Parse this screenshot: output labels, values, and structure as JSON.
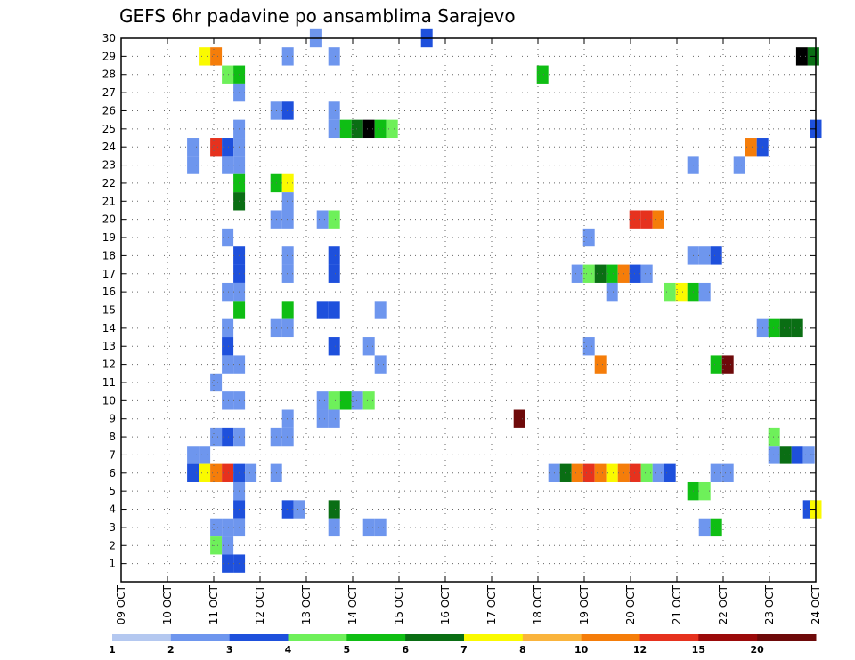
{
  "chart_data": {
    "type": "heatmap",
    "title": "GEFS 6hr padavine po ansamblima Sarajevo",
    "x_ticks": [
      "09 OCT",
      "10 OCT",
      "11 OCT",
      "12 OCT",
      "13 OCT",
      "14 OCT",
      "15 OCT",
      "16 OCT",
      "17 OCT",
      "18 OCT",
      "19 OCT",
      "20 OCT",
      "21 OCT",
      "22 OCT",
      "23 OCT",
      "24 OCT"
    ],
    "x_range": [
      9,
      24
    ],
    "y_range": [
      0,
      30
    ],
    "y_ticks": [
      1,
      2,
      3,
      4,
      5,
      6,
      7,
      8,
      9,
      10,
      11,
      12,
      13,
      14,
      15,
      16,
      17,
      18,
      19,
      20,
      21,
      22,
      23,
      24,
      25,
      26,
      27,
      28,
      29,
      30
    ],
    "grid": true,
    "colorbar": {
      "labels": [
        "1",
        "2",
        "3",
        "4",
        "5",
        "6",
        "7",
        "8",
        "10",
        "12",
        "15",
        "20"
      ],
      "colors": [
        "#b4c8f0",
        "#6e96ee",
        "#1e50dc",
        "#6ef05a",
        "#0fbe14",
        "#0a6e14",
        "#fafa00",
        "#fab43c",
        "#f57d0a",
        "#e6321e",
        "#9b0a0a",
        "#6e0a0a"
      ]
    },
    "cells": [
      [
        30,
        13.2,
        1
      ],
      [
        30,
        15.6,
        2
      ],
      [
        29,
        10.8,
        6
      ],
      [
        29,
        11.05,
        8
      ],
      [
        29,
        12.6,
        1
      ],
      [
        29,
        13.6,
        1
      ],
      [
        29,
        23.7,
        12
      ],
      [
        29,
        23.95,
        5
      ],
      [
        28,
        11.3,
        3
      ],
      [
        28,
        11.55,
        4
      ],
      [
        28,
        18.1,
        4
      ],
      [
        27,
        11.55,
        1
      ],
      [
        26,
        12.35,
        1
      ],
      [
        26,
        12.6,
        2
      ],
      [
        26,
        13.6,
        1
      ],
      [
        25,
        11.55,
        1
      ],
      [
        25,
        13.6,
        1
      ],
      [
        25,
        13.85,
        4
      ],
      [
        25,
        14.1,
        5
      ],
      [
        25,
        14.35,
        12
      ],
      [
        25,
        14.6,
        4
      ],
      [
        25,
        14.85,
        3
      ],
      [
        25,
        24.0,
        2
      ],
      [
        24,
        10.55,
        1
      ],
      [
        24,
        11.05,
        9
      ],
      [
        24,
        11.3,
        2
      ],
      [
        24,
        11.55,
        1
      ],
      [
        24,
        22.6,
        8
      ],
      [
        24,
        22.85,
        2
      ],
      [
        23,
        10.55,
        1
      ],
      [
        23,
        11.3,
        1
      ],
      [
        23,
        11.55,
        1
      ],
      [
        23,
        21.35,
        1
      ],
      [
        23,
        22.35,
        1
      ],
      [
        22,
        11.55,
        4
      ],
      [
        22,
        12.35,
        4
      ],
      [
        22,
        12.6,
        6
      ],
      [
        21,
        11.55,
        5
      ],
      [
        21,
        12.6,
        1
      ],
      [
        20,
        12.35,
        1
      ],
      [
        20,
        12.6,
        1
      ],
      [
        20,
        13.35,
        1
      ],
      [
        20,
        13.6,
        3
      ],
      [
        20,
        20.1,
        9
      ],
      [
        20,
        20.35,
        9
      ],
      [
        20,
        20.6,
        8
      ],
      [
        19,
        11.3,
        1
      ],
      [
        19,
        19.1,
        1
      ],
      [
        18,
        11.55,
        2
      ],
      [
        18,
        12.6,
        1
      ],
      [
        18,
        13.6,
        2
      ],
      [
        18,
        21.35,
        1
      ],
      [
        18,
        21.6,
        1
      ],
      [
        18,
        21.85,
        2
      ],
      [
        17,
        11.55,
        2
      ],
      [
        17,
        12.6,
        1
      ],
      [
        17,
        13.6,
        2
      ],
      [
        17,
        18.85,
        1
      ],
      [
        17,
        19.1,
        3
      ],
      [
        17,
        19.35,
        5
      ],
      [
        17,
        19.6,
        4
      ],
      [
        17,
        19.85,
        8
      ],
      [
        17,
        20.1,
        2
      ],
      [
        17,
        20.35,
        1
      ],
      [
        16,
        11.3,
        1
      ],
      [
        16,
        11.55,
        1
      ],
      [
        16,
        19.6,
        1
      ],
      [
        16,
        20.85,
        3
      ],
      [
        16,
        21.1,
        6
      ],
      [
        16,
        21.35,
        4
      ],
      [
        16,
        21.6,
        1
      ],
      [
        15,
        11.55,
        4
      ],
      [
        15,
        12.6,
        4
      ],
      [
        15,
        13.35,
        2
      ],
      [
        15,
        13.6,
        2
      ],
      [
        15,
        14.6,
        1
      ],
      [
        14,
        11.3,
        1
      ],
      [
        14,
        12.35,
        1
      ],
      [
        14,
        12.6,
        1
      ],
      [
        14,
        22.85,
        1
      ],
      [
        14,
        23.1,
        4
      ],
      [
        14,
        23.35,
        5
      ],
      [
        14,
        23.6,
        5
      ],
      [
        13,
        11.3,
        2
      ],
      [
        13,
        13.6,
        2
      ],
      [
        13,
        14.35,
        1
      ],
      [
        13,
        19.1,
        1
      ],
      [
        12,
        11.3,
        1
      ],
      [
        12,
        11.55,
        1
      ],
      [
        12,
        14.6,
        1
      ],
      [
        12,
        19.35,
        8
      ],
      [
        12,
        21.85,
        4
      ],
      [
        12,
        22.1,
        11
      ],
      [
        11,
        11.05,
        1
      ],
      [
        10,
        11.3,
        1
      ],
      [
        10,
        11.55,
        1
      ],
      [
        10,
        13.35,
        1
      ],
      [
        10,
        13.6,
        3
      ],
      [
        10,
        13.85,
        4
      ],
      [
        10,
        14.1,
        1
      ],
      [
        10,
        14.35,
        3
      ],
      [
        9,
        12.6,
        1
      ],
      [
        9,
        13.35,
        1
      ],
      [
        9,
        13.6,
        1
      ],
      [
        9,
        17.6,
        11
      ],
      [
        8,
        11.05,
        1
      ],
      [
        8,
        11.3,
        2
      ],
      [
        8,
        11.55,
        1
      ],
      [
        8,
        12.35,
        1
      ],
      [
        8,
        12.6,
        1
      ],
      [
        8,
        23.1,
        3
      ],
      [
        7,
        10.55,
        1
      ],
      [
        7,
        10.8,
        1
      ],
      [
        7,
        23.1,
        1
      ],
      [
        7,
        23.35,
        5
      ],
      [
        7,
        23.6,
        2
      ],
      [
        7,
        23.85,
        1
      ],
      [
        6,
        10.55,
        2
      ],
      [
        6,
        10.8,
        6
      ],
      [
        6,
        11.05,
        8
      ],
      [
        6,
        11.3,
        9
      ],
      [
        6,
        11.55,
        2
      ],
      [
        6,
        11.8,
        1
      ],
      [
        6,
        12.35,
        1
      ],
      [
        6,
        18.35,
        1
      ],
      [
        6,
        18.6,
        5
      ],
      [
        6,
        18.85,
        8
      ],
      [
        6,
        19.1,
        9
      ],
      [
        6,
        19.35,
        8
      ],
      [
        6,
        19.6,
        6
      ],
      [
        6,
        19.85,
        8
      ],
      [
        6,
        20.1,
        9
      ],
      [
        6,
        20.35,
        3
      ],
      [
        6,
        20.6,
        1
      ],
      [
        6,
        20.85,
        2
      ],
      [
        6,
        21.85,
        1
      ],
      [
        6,
        22.1,
        1
      ],
      [
        5,
        11.55,
        1
      ],
      [
        5,
        21.35,
        4
      ],
      [
        5,
        21.6,
        3
      ],
      [
        4,
        11.55,
        2
      ],
      [
        4,
        12.6,
        2
      ],
      [
        4,
        12.85,
        1
      ],
      [
        4,
        13.6,
        5
      ],
      [
        4,
        23.85,
        2
      ],
      [
        4,
        24.0,
        6
      ],
      [
        3,
        11.05,
        1
      ],
      [
        3,
        11.3,
        1
      ],
      [
        3,
        11.55,
        1
      ],
      [
        3,
        13.6,
        1
      ],
      [
        3,
        14.35,
        1
      ],
      [
        3,
        14.6,
        1
      ],
      [
        3,
        21.6,
        1
      ],
      [
        3,
        21.85,
        4
      ],
      [
        2,
        11.05,
        3
      ],
      [
        2,
        11.3,
        1
      ],
      [
        1,
        11.3,
        2
      ],
      [
        1,
        11.55,
        2
      ]
    ]
  }
}
